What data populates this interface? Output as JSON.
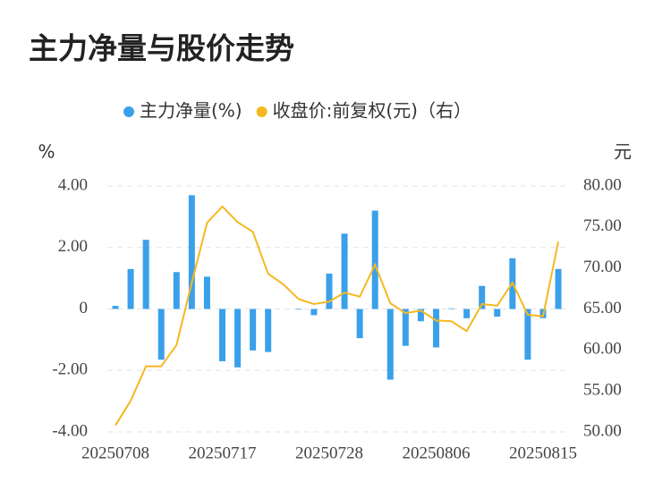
{
  "chart_data": {
    "type": "bar-line",
    "title": "主力净量与股价走势",
    "y_label": "%",
    "y2_label": "元",
    "categories": [
      "20250708",
      null,
      null,
      null,
      null,
      null,
      null,
      "20250717",
      null,
      null,
      null,
      null,
      null,
      null,
      "20250728",
      null,
      null,
      null,
      null,
      null,
      null,
      "20250806",
      null,
      null,
      null,
      null,
      null,
      null,
      "20250815",
      null
    ],
    "series": [
      {
        "name": "主力净量(%)",
        "type": "bar",
        "color": "#3aa0ea",
        "values": [
          0.1,
          1.3,
          2.25,
          -1.65,
          1.2,
          3.7,
          1.05,
          -1.7,
          -1.9,
          -1.35,
          -1.4,
          0,
          -0.02,
          -0.2,
          1.15,
          2.45,
          -0.95,
          3.2,
          -2.3,
          -1.2,
          -0.4,
          -1.25,
          0.02,
          -0.3,
          0.75,
          -0.25,
          1.65,
          -1.65,
          -0.3,
          1.3
        ]
      },
      {
        "name": "收盘价:前复权(元)（右）",
        "type": "line",
        "axis": "y2",
        "color": "#f5b820",
        "values": [
          50.8,
          53.8,
          58.0,
          58.0,
          60.6,
          68.2,
          75.5,
          77.5,
          75.6,
          74.4,
          69.3,
          68.0,
          66.2,
          65.6,
          65.9,
          67.0,
          66.5,
          70.4,
          65.7,
          64.5,
          64.8,
          63.6,
          63.5,
          62.3,
          65.6,
          65.4,
          68.2,
          64.3,
          64.1,
          73.2
        ]
      }
    ],
    "ylim": [
      -4,
      4
    ],
    "yticks": [
      {
        "value": -4,
        "label": "-4.00"
      },
      {
        "value": -2,
        "label": "-2.00"
      },
      0,
      {
        "value": 2,
        "label": "2.00"
      },
      {
        "value": 4,
        "label": "4.00"
      }
    ],
    "y2lim": [
      50,
      80
    ],
    "y2ticks": [
      {
        "value": 50,
        "label": "50.00"
      },
      {
        "value": 55,
        "label": "55.00"
      },
      {
        "value": 60,
        "label": "60.00"
      },
      {
        "value": 65,
        "label": "65.00"
      },
      {
        "value": 70,
        "label": "70.00"
      },
      {
        "value": 75,
        "label": "75.00"
      },
      {
        "value": 80,
        "label": "80.00"
      }
    ],
    "grid": true
  }
}
